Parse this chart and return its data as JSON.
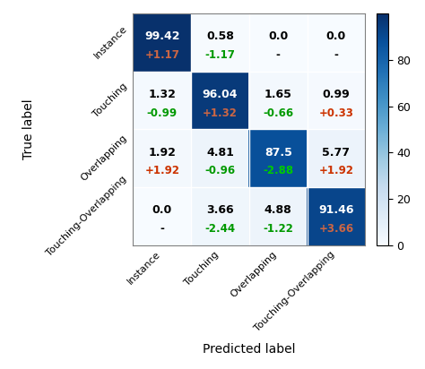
{
  "matrix_values": [
    [
      99.42,
      0.58,
      0.0,
      0.0
    ],
    [
      1.32,
      96.04,
      1.65,
      0.99
    ],
    [
      1.92,
      4.81,
      87.5,
      5.77
    ],
    [
      0.0,
      3.66,
      4.88,
      91.46
    ]
  ],
  "delta_values": [
    [
      "+1.17",
      "-1.17",
      "-",
      "-"
    ],
    [
      "-0.99",
      "+1.32",
      "-0.66",
      "+0.33"
    ],
    [
      "+1.92",
      "-0.96",
      "-2.88",
      "+1.92"
    ],
    [
      "-",
      "-2.44",
      "-1.22",
      "+3.66"
    ]
  ],
  "delta_colors": [
    [
      "#cc3300",
      "#009900",
      "black",
      "black"
    ],
    [
      "#009900",
      "#cc3300",
      "#009900",
      "#cc3300"
    ],
    [
      "#cc3300",
      "#009900",
      "#009900",
      "#cc3300"
    ],
    [
      "black",
      "#009900",
      "#009900",
      "#cc3300"
    ]
  ],
  "main_text_colors": [
    [
      "white",
      "black",
      "black",
      "black"
    ],
    [
      "black",
      "white",
      "black",
      "black"
    ],
    [
      "black",
      "black",
      "white",
      "black"
    ],
    [
      "black",
      "black",
      "black",
      "white"
    ]
  ],
  "delta_text_colors_on_dark": [
    [
      "#cc6644",
      "#00cc00",
      "black",
      "black"
    ],
    [
      "#00cc00",
      "#cc6644",
      "#00cc00",
      "#cc6644"
    ],
    [
      "#cc6644",
      "#00cc00",
      "#00cc00",
      "#cc6644"
    ],
    [
      "black",
      "#00cc00",
      "#00cc00",
      "#cc6644"
    ]
  ],
  "classes": [
    "Instance",
    "Touching",
    "Overlapping",
    "Touching-Overlapping"
  ],
  "xlabel": "Predicted label",
  "ylabel": "True label",
  "colorbar_ticks": [
    0,
    20,
    40,
    60,
    80
  ],
  "cmap_name": "Blues",
  "figsize": [
    4.74,
    4.12
  ],
  "dpi": 100,
  "vmin": 0,
  "vmax": 100
}
